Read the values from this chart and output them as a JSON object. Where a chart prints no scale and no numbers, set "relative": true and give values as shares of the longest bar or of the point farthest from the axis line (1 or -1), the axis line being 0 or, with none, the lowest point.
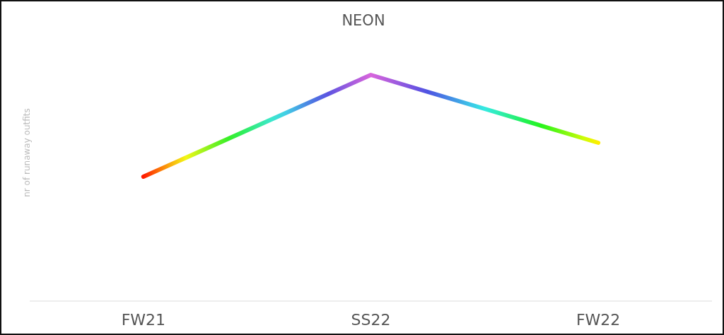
{
  "chart_data": {
    "type": "line",
    "title": "NEON",
    "ylabel": "nr of runaway outfits",
    "categories": [
      "FW21",
      "SS22",
      "FW22"
    ],
    "relative": true,
    "values": [
      0.55,
      1,
      0.7
    ],
    "colors": [
      "#ff1a00",
      "#d865dc",
      "#ffee00"
    ]
  }
}
